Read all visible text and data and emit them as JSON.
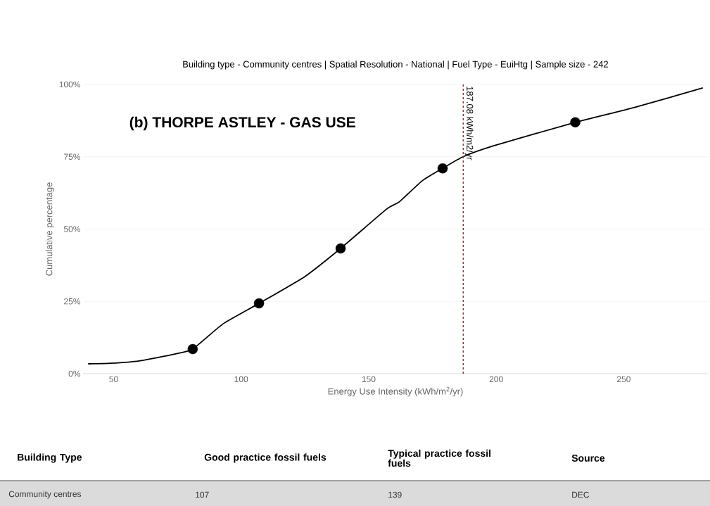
{
  "chart_data": {
    "type": "line",
    "title": "Building type - Community centres | Spatial Resolution - National | Fuel Type - EuiHtg | Sample size - 242",
    "xlabel": "Energy Use Intensity (kWh/m$^{2}$/yr)",
    "ylabel": "Cumulative percentage",
    "xlim": [
      38,
      283
    ],
    "ylim": [
      0,
      100
    ],
    "xticks": [
      50,
      100,
      150,
      200,
      250
    ],
    "yticks": [
      {
        "value": 0,
        "label": "0%"
      },
      {
        "value": 25,
        "label": "25%"
      },
      {
        "value": 50,
        "label": "50%"
      },
      {
        "value": 75,
        "label": "75%"
      },
      {
        "value": 100,
        "label": "100%"
      }
    ],
    "grid": "y",
    "marker": "circle",
    "series": [
      {
        "color": "#000000",
        "marker": "none",
        "x": [
          40,
          49,
          60,
          74,
          81,
          93,
          107,
          125,
          139,
          157,
          162,
          171,
          179,
          187,
          199,
          231,
          254,
          281
        ],
        "values": [
          3.4,
          3.6,
          4.4,
          6.8,
          8.5,
          17.3,
          24.3,
          33.6,
          43.3,
          56.9,
          59.4,
          66.7,
          71,
          75,
          78.8,
          86.9,
          92,
          98.8
        ]
      },
      {
        "type": "scatter",
        "color": "#000000",
        "x": [
          81,
          107,
          139,
          179,
          231
        ],
        "values": [
          8.5,
          24.3,
          43.3,
          71,
          86.9
        ]
      }
    ],
    "ref_lines": [
      {
        "axis": "x",
        "value": 187.08,
        "label": "187.08 kWh/m2/yr",
        "color": "#b22222",
        "line_style": "dashed"
      }
    ],
    "annotations": [
      "(b)  THORPE ASTLEY  - GAS USE",
      "Building Type",
      "Good practice fossil fuels",
      "Typical practice fossil fuels",
      "Source",
      "Community centres",
      "107",
      "139",
      "DEC"
    ]
  }
}
